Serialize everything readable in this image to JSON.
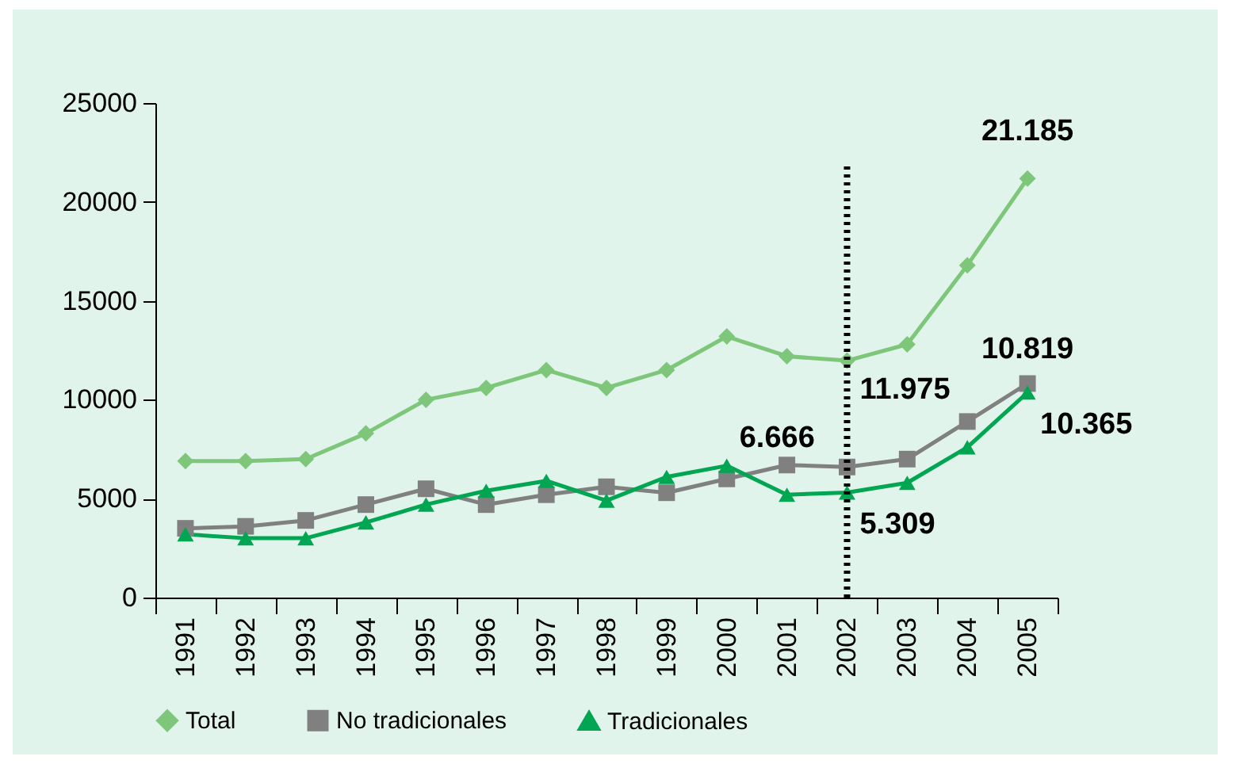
{
  "chart_data": {
    "type": "line",
    "categories": [
      "1991",
      "1992",
      "1993",
      "1994",
      "1995",
      "1996",
      "1997",
      "1998",
      "1999",
      "2000",
      "2001",
      "2002",
      "2003",
      "2004",
      "2005"
    ],
    "series": [
      {
        "name": "Total",
        "color": "#7dc67a",
        "marker": "diamond",
        "values": [
          6900,
          6900,
          7000,
          8300,
          10000,
          10600,
          11500,
          10600,
          11500,
          13200,
          12200,
          11975,
          12800,
          16800,
          21185
        ]
      },
      {
        "name": "No tradicionales",
        "color": "#808080",
        "marker": "square",
        "values": [
          3500,
          3600,
          3900,
          4700,
          5500,
          4700,
          5200,
          5600,
          5300,
          6000,
          6700,
          6600,
          7000,
          8900,
          10819
        ]
      },
      {
        "name": "Tradicionales",
        "color": "#00a651",
        "marker": "triangle",
        "values": [
          3200,
          3000,
          3000,
          3800,
          4700,
          5400,
          5900,
          4900,
          6100,
          6666,
          5200,
          5309,
          5800,
          7600,
          10365
        ]
      }
    ],
    "ylim": [
      0,
      25000
    ],
    "yticks": [
      0,
      5000,
      10000,
      15000,
      20000,
      25000
    ],
    "ref_lines": [
      {
        "axis": "x",
        "value": "2002",
        "color": "#000000",
        "line_style": "dotted"
      }
    ],
    "annotations": [
      {
        "text": "21.185",
        "x": "2005",
        "y": 21185
      },
      {
        "text": "11.975",
        "x": "2002",
        "y": 11975
      },
      {
        "text": "10.819",
        "x": "2005",
        "y": 10819
      },
      {
        "text": "10.365",
        "x": "2005",
        "y": 10365
      },
      {
        "text": "6.666",
        "x": "2000",
        "y": 6666
      },
      {
        "text": "5.309",
        "x": "2002",
        "y": 5309
      }
    ],
    "legend": "bottom",
    "grid": false,
    "line_style": "solid"
  }
}
